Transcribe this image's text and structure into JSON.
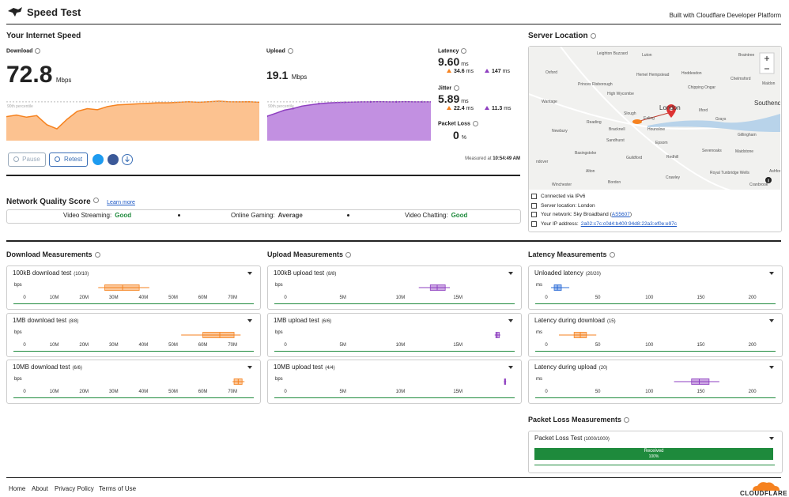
{
  "header": {
    "title": "Speed Test",
    "tagline": "Built with Cloudflare Developer Platform"
  },
  "speed": {
    "title": "Your Internet Speed",
    "download": {
      "label": "Download",
      "value": 72.8,
      "unit": "Mbps",
      "percentile_label": "90th percentile",
      "color": "#f6821f",
      "fill": "#fbb77c",
      "ylim": [
        0,
        80
      ],
      "series": [
        45,
        48,
        44,
        47,
        30,
        22,
        40,
        55,
        60,
        58,
        64,
        67,
        68,
        69,
        70,
        71,
        71,
        72,
        73,
        72,
        73,
        74,
        73,
        72.8,
        73,
        72
      ]
    },
    "upload": {
      "label": "Upload",
      "value": 19.1,
      "unit": "Mbps",
      "percentile_label": "90th percentile",
      "color": "#8e3fc0",
      "fill": "#b77ddc",
      "ylim": [
        0,
        21
      ],
      "series": [
        12,
        13.5,
        15,
        15.8,
        17,
        17.6,
        18.2,
        18.5,
        18.8,
        18.9,
        19,
        19.1,
        19.1,
        19.2,
        19.1,
        19.1,
        19.2,
        19.1,
        19.1,
        19.1
      ]
    },
    "latency": {
      "label": "Latency",
      "value": "9.60",
      "unit": "ms",
      "loaded_download": "34.6",
      "loaded_download_unit": "ms",
      "loaded_upload": "147",
      "loaded_upload_unit": "ms"
    },
    "jitter": {
      "label": "Jitter",
      "value": "5.89",
      "unit": "ms",
      "loaded_download": "22.4",
      "loaded_download_unit": "ms",
      "loaded_upload": "11.3",
      "loaded_upload_unit": "ms"
    },
    "packet_loss": {
      "label": "Packet Loss",
      "value": "0",
      "unit": "%"
    },
    "buttons": {
      "pause": "Pause",
      "retest": "Retest"
    },
    "measured": {
      "label": "Measured at",
      "time": "10:54:49 AM"
    }
  },
  "quality": {
    "title": "Network Quality Score",
    "link": "Learn more",
    "items": [
      {
        "label": "Video Streaming:",
        "score": "Good"
      },
      {
        "label": "Online Gaming:",
        "score": "Average"
      },
      {
        "label": "Video Chatting:",
        "score": "Good"
      }
    ]
  },
  "server": {
    "title": "Server Location",
    "map_labels": [
      "Leighton Buzzard",
      "Luton",
      "Braintree",
      "Oxford",
      "Hemel Hempstead",
      "Hoddesdon",
      "Chelmsford",
      "Princes Risborough",
      "Chipping Ongar",
      "Maldon",
      "Wantage",
      "High Wycombe",
      "Slough",
      "London",
      "Ilford",
      "Southend-on-Sea",
      "Newbury",
      "Reading",
      "Bracknell",
      "Ealing",
      "Hounslow",
      "Grays",
      "Basingstoke",
      "Sandhurst",
      "Epsom",
      "Sevenoaks",
      "Gillingham",
      "Maidstone",
      "Guildford",
      "Redhill",
      "Alton",
      "Crawley",
      "Royal Tunbridge Wells",
      "Ashford",
      "Winchester",
      "Bordon",
      "Cranbrook",
      "ndover"
    ],
    "connection": "Connected via IPv6",
    "location": "Server location: London",
    "network": {
      "label": "Your network: Sky Broadband (",
      "link": "AS5607",
      "end": ")"
    },
    "ip": {
      "label": "Your IP address:",
      "value": "2a02:c7c:c0d4:b400:94d8:22a3:ef0e:e97c"
    }
  },
  "measurements": [
    {
      "title": "Download Measurements",
      "unit": "bps",
      "lim": [
        0,
        76600000
      ],
      "ticks": [
        0,
        {
          "value": 10000000,
          "label": "10M"
        },
        {
          "value": 20000000,
          "label": "20M"
        },
        {
          "value": 30000000,
          "label": "30M"
        },
        {
          "value": 40000000,
          "label": "40M"
        },
        {
          "value": 50000000,
          "label": "50M"
        },
        {
          "value": 60000000,
          "label": "60M"
        },
        {
          "value": 70000000,
          "label": "70M"
        }
      ],
      "tests": [
        {
          "name": "100kB download test",
          "count": "(10/10)",
          "color": "#f6821f",
          "box": {
            "min": 24800000,
            "q1": 27000000,
            "median": 33000000,
            "q3": 38600000,
            "max": 42000000
          }
        },
        {
          "name": "1MB download test",
          "count": "(8/8)",
          "color": "#f6821f",
          "box": {
            "min": 52700000,
            "q1": 60000000,
            "median": 65700000,
            "q3": 70500000,
            "max": 72700000
          }
        },
        {
          "name": "10MB download test",
          "count": "(6/6)",
          "color": "#f6821f",
          "box": {
            "min": 70000000,
            "q1": 70500000,
            "median": 71900000,
            "q3": 73200000,
            "max": 74000000
          }
        }
      ]
    },
    {
      "title": "Upload Measurements",
      "unit": "bps",
      "lim": [
        0,
        19800000
      ],
      "ticks": [
        0,
        {
          "value": 5000000,
          "label": "5M"
        },
        {
          "value": 10000000,
          "label": "10M"
        },
        {
          "value": 15000000,
          "label": "15M"
        }
      ],
      "tests": [
        {
          "name": "100kB upload test",
          "count": "(8/8)",
          "color": "#8e3fc0",
          "box": {
            "min": 11600000,
            "q1": 12600000,
            "median": 13200000,
            "q3": 13900000,
            "max": 14300000
          }
        },
        {
          "name": "1MB upload test",
          "count": "(6/6)",
          "color": "#8e3fc0",
          "box": {
            "min": 18200000,
            "q1": 18300000,
            "median": 18400000,
            "q3": 18600000,
            "max": 18700000
          }
        },
        {
          "name": "10MB upload test",
          "count": "(4/4)",
          "color": "#8e3fc0",
          "box": {
            "min": 19000000,
            "q1": 19050000,
            "median": 19100000,
            "q3": 19150000,
            "max": 19200000
          }
        }
      ]
    },
    {
      "title": "Latency Measurements",
      "unit": "ms",
      "lim": [
        0,
        221
      ],
      "ticks": [
        0,
        50,
        100,
        150,
        200
      ],
      "tests": [
        {
          "name": "Unloaded latency",
          "count": "(20/20)",
          "color": "#2c6cd6",
          "box": {
            "min": 4.6,
            "q1": 7.7,
            "median": 10.8,
            "q3": 14.6,
            "max": 22.3
          }
        },
        {
          "name": "Latency during download",
          "count": "(15)",
          "color": "#f6821f",
          "box": {
            "min": 12.3,
            "q1": 27,
            "median": 33,
            "q3": 39,
            "max": 48.5
          }
        },
        {
          "name": "Latency during upload",
          "count": "(20)",
          "color": "#8e3fc0",
          "box": {
            "min": 124,
            "q1": 141,
            "median": 148.5,
            "q3": 158,
            "max": 168
          }
        }
      ]
    }
  ],
  "packet_loss": {
    "title": "Packet Loss Measurements",
    "test": "Packet Loss Test",
    "count": "(1000/1000)",
    "bar_label": "Received",
    "received_percent": 100,
    "received_label": "100%",
    "color": "#1e8a3c"
  },
  "footer": {
    "links": [
      "Home",
      "About",
      "Privacy Policy",
      "Terms of Use"
    ],
    "brand": "CLOUDFLARE"
  }
}
